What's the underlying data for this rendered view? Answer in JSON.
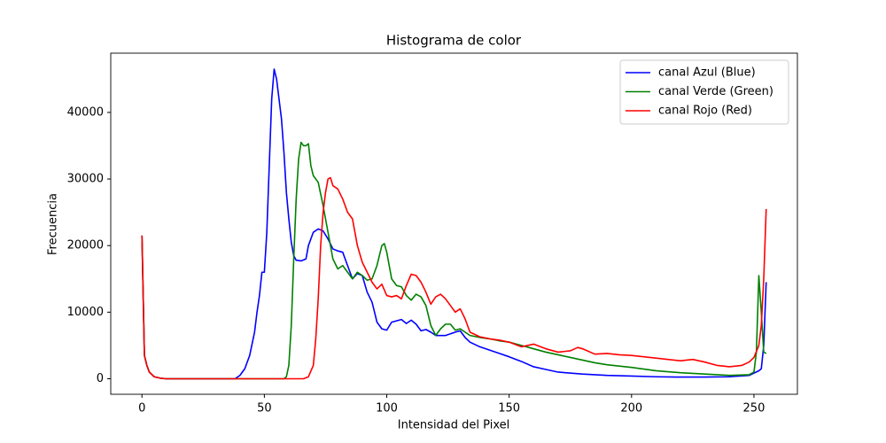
{
  "chart_data": {
    "type": "line",
    "title": "Histograma de color",
    "x_label": "Intensidad del Pixel",
    "y_label": "Frecuencia",
    "xlim": [
      -12.75,
      267.75
    ],
    "ylim": [
      -2330,
      48900
    ],
    "xticks": [
      0,
      50,
      100,
      150,
      200,
      250
    ],
    "yticks": [
      0,
      10000,
      20000,
      30000,
      40000
    ],
    "grid": false,
    "legend": "upper right",
    "series": [
      {
        "name": "canal Azul (Blue)",
        "color": "#0000ff",
        "x": [
          0,
          1,
          2,
          3,
          5,
          8,
          10,
          38,
          40,
          42,
          44,
          46,
          47,
          48,
          49,
          50,
          51,
          52,
          53,
          54,
          55,
          56,
          57,
          58,
          59,
          60,
          61,
          62,
          63,
          65,
          67,
          68,
          70,
          72,
          74,
          76,
          78,
          80,
          82,
          84,
          86,
          88,
          90,
          92,
          94,
          96,
          98,
          100,
          102,
          104,
          106,
          108,
          110,
          112,
          114,
          116,
          118,
          120,
          124,
          128,
          130,
          132,
          134,
          138,
          142,
          146,
          150,
          155,
          160,
          165,
          170,
          180,
          190,
          200,
          210,
          220,
          230,
          240,
          248,
          252,
          253,
          254,
          255
        ],
        "values": [
          21500,
          3500,
          2000,
          1000,
          300,
          50,
          0,
          0,
          500,
          1500,
          3500,
          7000,
          10000,
          12500,
          16000,
          16000,
          22000,
          32000,
          42000,
          46500,
          45000,
          42000,
          39000,
          34000,
          28000,
          24000,
          20500,
          18500,
          17800,
          17700,
          18000,
          20000,
          22000,
          22500,
          22200,
          21000,
          19500,
          19200,
          19000,
          17000,
          15000,
          15800,
          15500,
          13000,
          11500,
          8500,
          7500,
          7300,
          8500,
          8700,
          8900,
          8300,
          8800,
          8200,
          7200,
          7400,
          7000,
          6500,
          6500,
          7000,
          7200,
          6200,
          5500,
          4800,
          4300,
          3800,
          3300,
          2600,
          1800,
          1400,
          1000,
          700,
          500,
          400,
          300,
          250,
          250,
          300,
          500,
          1200,
          1500,
          5000,
          14500
        ]
      },
      {
        "name": "canal Verde (Green)",
        "color": "#008000",
        "x": [
          0,
          1,
          2,
          3,
          5,
          8,
          10,
          58,
          59,
          60,
          61,
          62,
          63,
          64,
          65,
          66,
          67,
          68,
          69,
          70,
          72,
          74,
          76,
          78,
          80,
          82,
          84,
          86,
          88,
          90,
          92,
          94,
          96,
          98,
          99,
          100,
          102,
          104,
          106,
          108,
          110,
          112,
          114,
          116,
          118,
          120,
          122,
          124,
          126,
          128,
          130,
          132,
          134,
          138,
          142,
          146,
          150,
          155,
          160,
          165,
          170,
          175,
          180,
          185,
          190,
          200,
          210,
          220,
          230,
          240,
          248,
          250,
          251,
          252,
          253,
          254,
          255
        ],
        "values": [
          21500,
          3500,
          2000,
          1000,
          300,
          50,
          0,
          0,
          300,
          2000,
          8000,
          18000,
          27000,
          33000,
          35500,
          35000,
          35000,
          35300,
          32000,
          30500,
          29500,
          26000,
          22000,
          18000,
          16500,
          17000,
          16000,
          15000,
          16000,
          15500,
          14800,
          15000,
          17000,
          20000,
          20300,
          19000,
          15000,
          14000,
          13800,
          12500,
          11800,
          12700,
          12300,
          11000,
          8000,
          6500,
          7500,
          8200,
          8200,
          7300,
          7500,
          7000,
          6500,
          6200,
          6000,
          5700,
          5500,
          5000,
          4500,
          4000,
          3600,
          3200,
          2800,
          2400,
          2100,
          1700,
          1200,
          900,
          700,
          500,
          600,
          1000,
          4000,
          15500,
          10000,
          4000,
          3800
        ]
      },
      {
        "name": "canal Rojo (Red)",
        "color": "#ff0000",
        "x": [
          0,
          1,
          2,
          3,
          5,
          8,
          10,
          66,
          68,
          70,
          71,
          72,
          73,
          74,
          75,
          76,
          77,
          78,
          80,
          82,
          84,
          86,
          88,
          90,
          92,
          94,
          96,
          98,
          100,
          102,
          104,
          106,
          108,
          110,
          112,
          114,
          116,
          118,
          120,
          122,
          124,
          126,
          128,
          130,
          132,
          134,
          138,
          142,
          146,
          150,
          155,
          160,
          165,
          170,
          175,
          178,
          180,
          185,
          190,
          195,
          200,
          210,
          220,
          225,
          230,
          235,
          240,
          245,
          248,
          250,
          252,
          253,
          254,
          255
        ],
        "values": [
          21500,
          3500,
          2000,
          1000,
          300,
          50,
          0,
          0,
          300,
          2000,
          6000,
          12000,
          20000,
          25000,
          28000,
          30000,
          30200,
          29000,
          28500,
          27000,
          25000,
          24000,
          20000,
          17500,
          16000,
          14500,
          13500,
          14200,
          12500,
          12300,
          12500,
          12000,
          14000,
          15700,
          15500,
          14500,
          13000,
          11200,
          12300,
          12700,
          12000,
          11000,
          10000,
          10500,
          9000,
          7000,
          6300,
          6000,
          5800,
          5500,
          4800,
          5200,
          4500,
          4000,
          4200,
          4700,
          4500,
          3700,
          3800,
          3600,
          3500,
          3100,
          2700,
          2900,
          2500,
          2000,
          1800,
          2000,
          2500,
          3200,
          5000,
          8000,
          15000,
          25500
        ]
      }
    ]
  }
}
